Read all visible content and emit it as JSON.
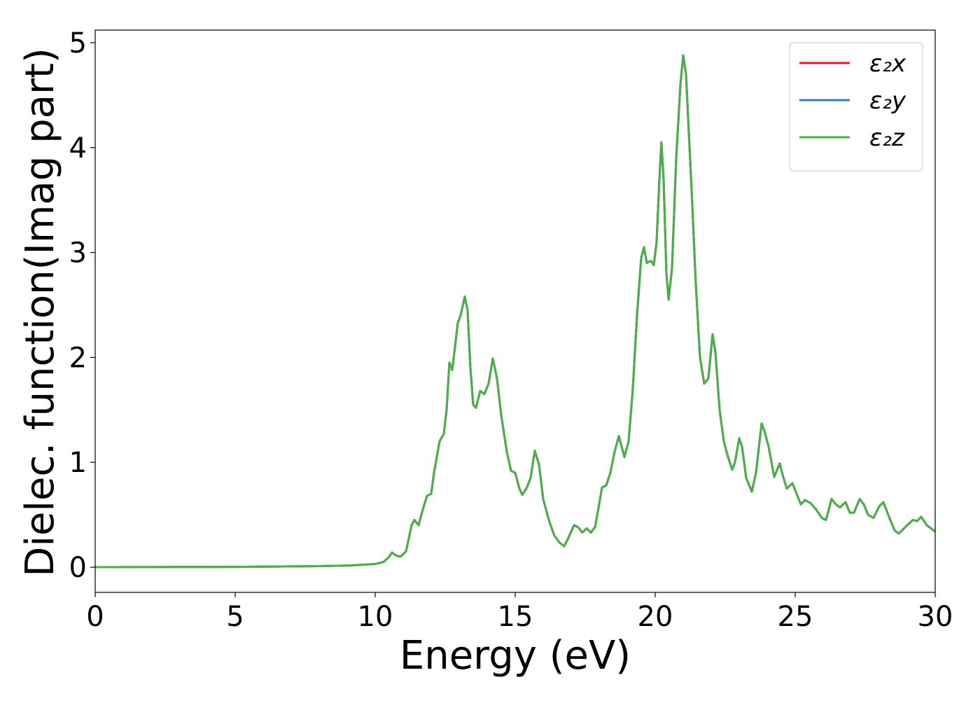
{
  "chart_data": {
    "type": "line",
    "x_label": "Energy (eV)",
    "y_label": "Dielec. function(Imag part)",
    "xlim": [
      0,
      30
    ],
    "ylim": [
      -0.24,
      5.12
    ],
    "xticks": [
      0,
      5,
      10,
      15,
      20,
      25,
      30
    ],
    "yticks": [
      0,
      1,
      2,
      3,
      4,
      5
    ],
    "grid": false,
    "legend": "upper right",
    "x": [
      0,
      5,
      8,
      9,
      10,
      10.3,
      10.5,
      10.6,
      10.75,
      10.9,
      11.1,
      11.3,
      11.4,
      11.55,
      11.7,
      11.85,
      12,
      12.1,
      12.3,
      12.45,
      12.55,
      12.65,
      12.75,
      12.85,
      12.95,
      13.05,
      13.2,
      13.3,
      13.4,
      13.5,
      13.6,
      13.75,
      13.9,
      14.05,
      14.2,
      14.35,
      14.5,
      14.7,
      14.85,
      15,
      15.15,
      15.25,
      15.4,
      15.55,
      15.7,
      15.85,
      16,
      16.2,
      16.4,
      16.6,
      16.75,
      16.9,
      17.1,
      17.25,
      17.4,
      17.55,
      17.7,
      17.85,
      18,
      18.1,
      18.25,
      18.4,
      18.55,
      18.7,
      18.8,
      18.9,
      19.05,
      19.2,
      19.35,
      19.5,
      19.6,
      19.7,
      19.85,
      19.95,
      20.05,
      20.15,
      20.22,
      20.3,
      20.4,
      20.48,
      20.6,
      20.75,
      20.9,
      21,
      21.1,
      21.3,
      21.45,
      21.6,
      21.75,
      21.9,
      22.05,
      22.15,
      22.3,
      22.45,
      22.6,
      22.75,
      22.85,
      23,
      23.1,
      23.25,
      23.45,
      23.6,
      23.8,
      23.9,
      24.05,
      24.25,
      24.45,
      24.55,
      24.7,
      24.9,
      25.05,
      25.2,
      25.35,
      25.55,
      25.75,
      25.95,
      26.1,
      26.3,
      26.45,
      26.6,
      26.8,
      26.95,
      27.1,
      27.3,
      27.45,
      27.6,
      27.8,
      28,
      28.15,
      28.35,
      28.55,
      28.7,
      29,
      29.2,
      29.35,
      29.5,
      29.7,
      30
    ],
    "series": [
      {
        "name": "ε₂x",
        "color": "#e41a1c",
        "values": [
          0,
          0.003,
          0.01,
          0.015,
          0.03,
          0.05,
          0.1,
          0.14,
          0.11,
          0.1,
          0.15,
          0.4,
          0.45,
          0.4,
          0.55,
          0.68,
          0.7,
          0.9,
          1.2,
          1.27,
          1.5,
          1.95,
          1.88,
          2.1,
          2.33,
          2.4,
          2.58,
          2.45,
          1.9,
          1.55,
          1.52,
          1.68,
          1.65,
          1.75,
          1.99,
          1.8,
          1.45,
          1.1,
          0.92,
          0.9,
          0.75,
          0.69,
          0.75,
          0.85,
          1.11,
          0.98,
          0.65,
          0.45,
          0.3,
          0.23,
          0.2,
          0.28,
          0.4,
          0.38,
          0.33,
          0.37,
          0.33,
          0.38,
          0.6,
          0.76,
          0.78,
          0.9,
          1.1,
          1.25,
          1.15,
          1.05,
          1.2,
          1.7,
          2.4,
          2.95,
          3.05,
          2.9,
          2.92,
          2.88,
          3.1,
          3.7,
          4.05,
          3.7,
          2.8,
          2.55,
          2.85,
          3.9,
          4.6,
          4.88,
          4.7,
          3.6,
          2.7,
          2.0,
          1.75,
          1.8,
          2.22,
          2.05,
          1.5,
          1.2,
          1.05,
          0.93,
          1.0,
          1.23,
          1.15,
          0.85,
          0.72,
          0.9,
          1.37,
          1.3,
          1.15,
          0.86,
          0.99,
          0.88,
          0.75,
          0.8,
          0.7,
          0.6,
          0.64,
          0.61,
          0.55,
          0.47,
          0.45,
          0.65,
          0.6,
          0.57,
          0.62,
          0.52,
          0.52,
          0.65,
          0.6,
          0.5,
          0.47,
          0.58,
          0.62,
          0.48,
          0.35,
          0.32,
          0.4,
          0.45,
          0.44,
          0.48,
          0.4,
          0.34
        ]
      },
      {
        "name": "ε₂y",
        "color": "#377eb8",
        "values": [
          0,
          0.003,
          0.01,
          0.015,
          0.03,
          0.05,
          0.1,
          0.14,
          0.11,
          0.1,
          0.15,
          0.4,
          0.45,
          0.4,
          0.55,
          0.68,
          0.7,
          0.9,
          1.2,
          1.27,
          1.5,
          1.95,
          1.88,
          2.1,
          2.33,
          2.4,
          2.58,
          2.45,
          1.9,
          1.55,
          1.52,
          1.68,
          1.65,
          1.75,
          1.99,
          1.8,
          1.45,
          1.1,
          0.92,
          0.9,
          0.75,
          0.69,
          0.75,
          0.85,
          1.11,
          0.98,
          0.65,
          0.45,
          0.3,
          0.23,
          0.2,
          0.28,
          0.4,
          0.38,
          0.33,
          0.37,
          0.33,
          0.38,
          0.6,
          0.76,
          0.78,
          0.9,
          1.1,
          1.25,
          1.15,
          1.05,
          1.2,
          1.7,
          2.4,
          2.95,
          3.05,
          2.9,
          2.92,
          2.88,
          3.1,
          3.7,
          4.05,
          3.7,
          2.8,
          2.55,
          2.85,
          3.9,
          4.6,
          4.88,
          4.7,
          3.6,
          2.7,
          2.0,
          1.75,
          1.8,
          2.22,
          2.05,
          1.5,
          1.2,
          1.05,
          0.93,
          1.0,
          1.23,
          1.15,
          0.85,
          0.72,
          0.9,
          1.37,
          1.3,
          1.15,
          0.86,
          0.99,
          0.88,
          0.75,
          0.8,
          0.7,
          0.6,
          0.64,
          0.61,
          0.55,
          0.47,
          0.45,
          0.65,
          0.6,
          0.57,
          0.62,
          0.52,
          0.52,
          0.65,
          0.6,
          0.5,
          0.47,
          0.58,
          0.62,
          0.48,
          0.35,
          0.32,
          0.4,
          0.45,
          0.44,
          0.48,
          0.4,
          0.34
        ]
      },
      {
        "name": "ε₂z",
        "color": "#4daf4a",
        "values": [
          0,
          0.003,
          0.01,
          0.015,
          0.03,
          0.05,
          0.1,
          0.14,
          0.11,
          0.1,
          0.15,
          0.4,
          0.45,
          0.4,
          0.55,
          0.68,
          0.7,
          0.9,
          1.2,
          1.27,
          1.5,
          1.95,
          1.88,
          2.1,
          2.33,
          2.4,
          2.58,
          2.45,
          1.9,
          1.55,
          1.52,
          1.68,
          1.65,
          1.75,
          1.99,
          1.8,
          1.45,
          1.1,
          0.92,
          0.9,
          0.75,
          0.69,
          0.75,
          0.85,
          1.11,
          0.98,
          0.65,
          0.45,
          0.3,
          0.23,
          0.2,
          0.28,
          0.4,
          0.38,
          0.33,
          0.37,
          0.33,
          0.38,
          0.6,
          0.76,
          0.78,
          0.9,
          1.1,
          1.25,
          1.15,
          1.05,
          1.2,
          1.7,
          2.4,
          2.95,
          3.05,
          2.9,
          2.92,
          2.88,
          3.1,
          3.7,
          4.05,
          3.7,
          2.8,
          2.55,
          2.85,
          3.9,
          4.6,
          4.88,
          4.7,
          3.6,
          2.7,
          2.0,
          1.75,
          1.8,
          2.22,
          2.05,
          1.5,
          1.2,
          1.05,
          0.93,
          1.0,
          1.23,
          1.15,
          0.85,
          0.72,
          0.9,
          1.37,
          1.3,
          1.15,
          0.86,
          0.99,
          0.88,
          0.75,
          0.8,
          0.7,
          0.6,
          0.64,
          0.61,
          0.55,
          0.47,
          0.45,
          0.65,
          0.6,
          0.57,
          0.62,
          0.52,
          0.52,
          0.65,
          0.6,
          0.5,
          0.47,
          0.58,
          0.62,
          0.48,
          0.35,
          0.32,
          0.4,
          0.45,
          0.44,
          0.48,
          0.4,
          0.34
        ]
      }
    ]
  }
}
